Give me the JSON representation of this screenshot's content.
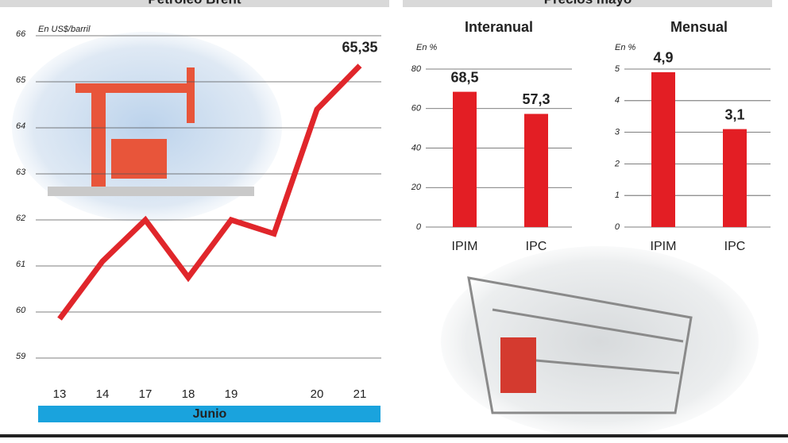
{
  "header": {
    "left": "Petróleo Brent",
    "right": "Precios mayo"
  },
  "chart_data": [
    {
      "type": "line",
      "subtitle": "En US$/barril",
      "xlabel": "Junio",
      "categories": [
        "13",
        "14",
        "17",
        "18",
        "19",
        null,
        "20",
        "21"
      ],
      "series": [
        {
          "color": "#e0262b",
          "values": [
            59.85,
            61.1,
            62.0,
            60.75,
            62.0,
            61.7,
            64.4,
            65.35
          ],
          "value_labels": [
            null,
            null,
            null,
            null,
            null,
            null,
            null,
            "65,35"
          ]
        }
      ],
      "ylim": [
        58.5,
        66
      ],
      "yticks": [
        59,
        60,
        61,
        62,
        63,
        64,
        65,
        66
      ],
      "grid": true
    },
    {
      "type": "bar",
      "title": "Interanual",
      "subtitle": "En %",
      "categories": [
        "IPIM",
        "IPC"
      ],
      "values": [
        68.5,
        57.3
      ],
      "value_labels": [
        "68,5",
        "57,3"
      ],
      "color": "#e31e24",
      "ylim": [
        0,
        80
      ],
      "yticks": [
        0,
        20,
        40,
        60,
        80
      ],
      "grid": true
    },
    {
      "type": "bar",
      "title": "Mensual",
      "subtitle": "En %",
      "categories": [
        "IPIM",
        "IPC"
      ],
      "values": [
        4.9,
        3.1
      ],
      "value_labels": [
        "4,9",
        "3,1"
      ],
      "color": "#e31e24",
      "ylim": [
        0,
        5
      ],
      "yticks": [
        0,
        1,
        2,
        3,
        4,
        5
      ],
      "grid": true
    }
  ]
}
